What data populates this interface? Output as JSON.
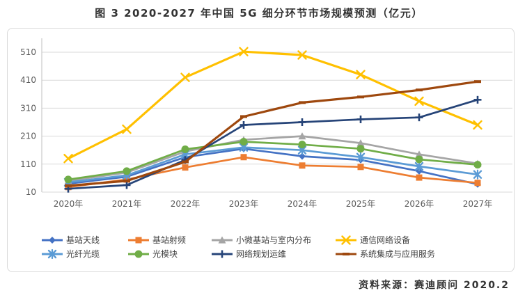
{
  "page": {
    "title": "图 3 2020-2027 年中国 5G 细分环节市场规模预测（亿元）",
    "source_label": "资料来源：赛迪顾问  2020.2"
  },
  "axis_colors": {
    "grid": "#d9d9d9",
    "axis_line": "#bfbfbf",
    "tick_text": "#595959"
  },
  "chart_data": {
    "type": "line",
    "title": "图 3 2020-2027 年中国 5G 细分环节市场规模预测（亿元）",
    "unit": "亿元",
    "categories": [
      "2020年",
      "2021年",
      "2022年",
      "2023年",
      "2024年",
      "2025年",
      "2026年",
      "2027年"
    ],
    "yticks": [
      10,
      110,
      210,
      310,
      410,
      510
    ],
    "ylim": [
      10,
      560
    ],
    "xlabel": "",
    "ylabel": "",
    "grid": true,
    "legend_position": "bottom",
    "series": [
      {
        "name": "基站天线",
        "color": "#4472C4",
        "marker": "diamond",
        "values": [
          40,
          65,
          135,
          165,
          138,
          125,
          85,
          38
        ]
      },
      {
        "name": "基站射频",
        "color": "#ED7D31",
        "marker": "square",
        "values": [
          28,
          55,
          98,
          135,
          105,
          100,
          62,
          43
        ]
      },
      {
        "name": "小微基站与室内分布",
        "color": "#A5A5A5",
        "marker": "triangle",
        "values": [
          50,
          80,
          155,
          197,
          210,
          185,
          145,
          112
        ]
      },
      {
        "name": "通信网络设备",
        "color": "#FFC000",
        "marker": "x",
        "values": [
          130,
          235,
          420,
          512,
          500,
          430,
          335,
          250
        ]
      },
      {
        "name": "光纤光缆",
        "color": "#5B9BD5",
        "marker": "asterisk",
        "values": [
          45,
          70,
          145,
          170,
          160,
          135,
          102,
          73
        ]
      },
      {
        "name": "光模块",
        "color": "#70AD47",
        "marker": "circle",
        "values": [
          55,
          85,
          163,
          190,
          180,
          165,
          127,
          108
        ]
      },
      {
        "name": "网络规划运维",
        "color": "#264478",
        "marker": "plus",
        "values": [
          22,
          35,
          125,
          250,
          260,
          270,
          277,
          340
        ]
      },
      {
        "name": "系统集成与应用服务",
        "color": "#9E480E",
        "marker": "dash",
        "values": [
          33,
          50,
          118,
          280,
          330,
          350,
          375,
          405
        ]
      }
    ]
  }
}
